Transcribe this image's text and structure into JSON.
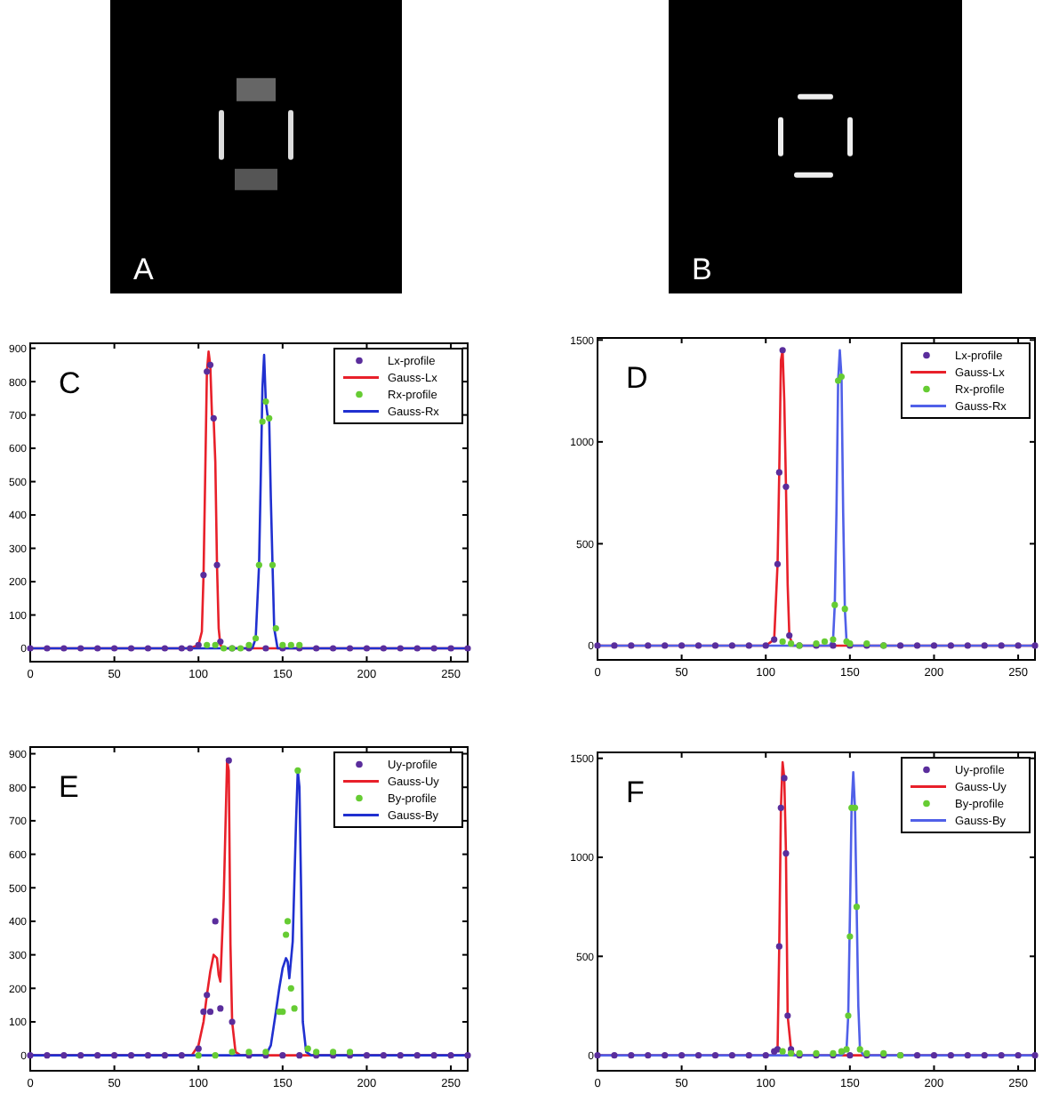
{
  "chart_data": [
    {
      "type": "other",
      "annotations": [
        "A"
      ]
    },
    {
      "type": "other",
      "annotations": [
        "B"
      ]
    },
    {
      "type": "line",
      "title": "C",
      "xlim": [
        0,
        260
      ],
      "xticks": [
        0,
        50,
        100,
        150,
        200,
        250
      ],
      "ylim": [
        -40,
        915
      ],
      "yticks": [
        0,
        100,
        200,
        300,
        400,
        500,
        600,
        700,
        800,
        900
      ],
      "legend": "top right",
      "series": [
        {
          "name": "Lx-profile",
          "type": "scatter",
          "marker": "circle",
          "color": "#5a2d9c",
          "x": [
            0,
            10,
            20,
            30,
            40,
            50,
            60,
            70,
            80,
            90,
            95,
            100,
            103,
            105,
            107,
            109,
            111,
            113,
            120,
            130,
            140,
            150,
            160,
            170,
            180,
            190,
            200,
            210,
            220,
            230,
            240,
            250,
            260
          ],
          "values": [
            0,
            0,
            0,
            0,
            0,
            0,
            0,
            0,
            0,
            0,
            0,
            10,
            220,
            830,
            850,
            690,
            250,
            20,
            0,
            0,
            0,
            0,
            0,
            0,
            0,
            0,
            0,
            0,
            0,
            0,
            0,
            0,
            0
          ]
        },
        {
          "name": "Gauss-Lx",
          "type": "line",
          "marker": "none",
          "color": "#e8202a",
          "x": [
            0,
            95,
            100,
            102,
            103,
            104,
            105,
            106,
            107,
            108,
            109,
            110,
            111,
            112,
            113,
            115,
            260
          ],
          "values": [
            0,
            0,
            10,
            50,
            220,
            520,
            830,
            890,
            850,
            700,
            690,
            560,
            250,
            60,
            10,
            0,
            0
          ]
        },
        {
          "name": "Rx-profile",
          "type": "scatter",
          "marker": "circle",
          "color": "#66cc33",
          "x": [
            105,
            110,
            115,
            120,
            125,
            130,
            134,
            136,
            138,
            140,
            142,
            144,
            146,
            150,
            155,
            160
          ],
          "values": [
            10,
            10,
            0,
            0,
            0,
            10,
            30,
            250,
            680,
            740,
            690,
            250,
            60,
            10,
            10,
            10
          ]
        },
        {
          "name": "Gauss-Rx",
          "type": "line",
          "marker": "none",
          "color": "#2030d0",
          "x": [
            0,
            132,
            134,
            136,
            137,
            138,
            139,
            140,
            141,
            142,
            143,
            144,
            145,
            147,
            260
          ],
          "values": [
            0,
            0,
            30,
            250,
            510,
            780,
            880,
            740,
            700,
            690,
            450,
            250,
            60,
            0,
            0
          ]
        }
      ]
    },
    {
      "type": "line",
      "title": "D",
      "xlim": [
        0,
        260
      ],
      "xticks": [
        0,
        50,
        100,
        150,
        200,
        250
      ],
      "ylim": [
        -70,
        1510
      ],
      "yticks": [
        0,
        500,
        1000,
        1500
      ],
      "legend": "top right",
      "series": [
        {
          "name": "Lx-profile",
          "type": "scatter",
          "marker": "circle",
          "color": "#5a2d9c",
          "x": [
            0,
            10,
            20,
            30,
            40,
            50,
            60,
            70,
            80,
            90,
            100,
            105,
            107,
            108,
            110,
            112,
            114,
            120,
            130,
            140,
            150,
            160,
            170,
            180,
            190,
            200,
            210,
            220,
            230,
            240,
            250,
            260
          ],
          "values": [
            0,
            0,
            0,
            0,
            0,
            0,
            0,
            0,
            0,
            0,
            0,
            30,
            400,
            850,
            1450,
            780,
            50,
            0,
            0,
            0,
            0,
            0,
            0,
            0,
            0,
            0,
            0,
            0,
            0,
            0,
            0,
            0
          ]
        },
        {
          "name": "Gauss-Lx",
          "type": "line",
          "marker": "none",
          "color": "#e8202a",
          "x": [
            0,
            100,
            105,
            107,
            108,
            109,
            110,
            111,
            112,
            113,
            114,
            116,
            260
          ],
          "values": [
            0,
            0,
            30,
            400,
            850,
            1400,
            1450,
            1200,
            780,
            300,
            50,
            0,
            0
          ]
        },
        {
          "name": "Rx-profile",
          "type": "scatter",
          "marker": "circle",
          "color": "#66cc33",
          "x": [
            110,
            115,
            120,
            130,
            135,
            140,
            141,
            143,
            145,
            147,
            148,
            150,
            160,
            170
          ],
          "values": [
            20,
            10,
            0,
            10,
            20,
            30,
            200,
            1300,
            1320,
            180,
            20,
            10,
            10,
            0
          ]
        },
        {
          "name": "Gauss-Rx",
          "type": "line",
          "marker": "none",
          "color": "#5060e8",
          "x": [
            0,
            138,
            140,
            141,
            142,
            143,
            144,
            145,
            146,
            147,
            148,
            150,
            260
          ],
          "values": [
            0,
            0,
            30,
            200,
            650,
            1300,
            1450,
            1320,
            650,
            180,
            20,
            0,
            0
          ]
        }
      ]
    },
    {
      "type": "line",
      "title": "E",
      "xlim": [
        0,
        260
      ],
      "xticks": [
        0,
        50,
        100,
        150,
        200,
        250
      ],
      "ylim": [
        -46,
        920
      ],
      "yticks": [
        0,
        100,
        200,
        300,
        400,
        500,
        600,
        700,
        800,
        900
      ],
      "legend": "top right",
      "series": [
        {
          "name": "Uy-profile",
          "type": "scatter",
          "marker": "circle",
          "color": "#5a2d9c",
          "x": [
            0,
            10,
            20,
            30,
            40,
            50,
            60,
            70,
            80,
            90,
            100,
            103,
            105,
            107,
            110,
            113,
            118,
            120,
            130,
            140,
            150,
            160,
            170,
            180,
            190,
            200,
            210,
            220,
            230,
            240,
            250,
            260
          ],
          "values": [
            0,
            0,
            0,
            0,
            0,
            0,
            0,
            0,
            0,
            0,
            20,
            130,
            180,
            130,
            400,
            140,
            880,
            100,
            0,
            0,
            0,
            0,
            0,
            0,
            0,
            0,
            0,
            0,
            0,
            0,
            0,
            0
          ]
        },
        {
          "name": "Gauss-Uy",
          "type": "line",
          "marker": "none",
          "color": "#e8202a",
          "x": [
            0,
            96,
            100,
            103,
            105,
            107,
            109,
            111,
            112,
            113,
            115,
            117,
            118,
            119,
            120,
            122,
            125,
            260
          ],
          "values": [
            0,
            0,
            30,
            100,
            180,
            250,
            300,
            290,
            240,
            220,
            470,
            880,
            850,
            330,
            100,
            10,
            0,
            0
          ]
        },
        {
          "name": "By-profile",
          "type": "scatter",
          "marker": "circle",
          "color": "#66cc33",
          "x": [
            100,
            110,
            120,
            130,
            140,
            148,
            150,
            152,
            153,
            155,
            157,
            159,
            165,
            170,
            180,
            190
          ],
          "values": [
            0,
            0,
            10,
            10,
            10,
            130,
            130,
            360,
            400,
            200,
            140,
            850,
            20,
            10,
            10,
            10
          ]
        },
        {
          "name": "Gauss-By",
          "type": "line",
          "marker": "none",
          "color": "#2030d0",
          "x": [
            0,
            140,
            143,
            146,
            148,
            150,
            152,
            153,
            154,
            156,
            158,
            159,
            160,
            161,
            162,
            164,
            167,
            260
          ],
          "values": [
            0,
            0,
            30,
            130,
            200,
            260,
            290,
            280,
            230,
            340,
            700,
            850,
            800,
            490,
            100,
            10,
            0,
            0
          ]
        }
      ]
    },
    {
      "type": "line",
      "title": "F",
      "xlim": [
        0,
        260
      ],
      "xticks": [
        0,
        50,
        100,
        150,
        200,
        250
      ],
      "ylim": [
        -78,
        1530
      ],
      "yticks": [
        0,
        500,
        1000,
        1500
      ],
      "legend": "top right",
      "series": [
        {
          "name": "Uy-profile",
          "type": "scatter",
          "marker": "circle",
          "color": "#5a2d9c",
          "x": [
            0,
            10,
            20,
            30,
            40,
            50,
            60,
            70,
            80,
            90,
            100,
            105,
            107,
            108,
            109,
            111,
            112,
            113,
            115,
            120,
            130,
            140,
            150,
            160,
            170,
            180,
            190,
            200,
            210,
            220,
            230,
            240,
            250,
            260
          ],
          "values": [
            0,
            0,
            0,
            0,
            0,
            0,
            0,
            0,
            0,
            0,
            0,
            20,
            30,
            550,
            1250,
            1400,
            1020,
            200,
            30,
            0,
            0,
            0,
            0,
            0,
            0,
            0,
            0,
            0,
            0,
            0,
            0,
            0,
            0,
            0
          ]
        },
        {
          "name": "Gauss-Uy",
          "type": "line",
          "marker": "none",
          "color": "#e8202a",
          "x": [
            0,
            105,
            107,
            108,
            109,
            110,
            111,
            112,
            113,
            115,
            117,
            260
          ],
          "values": [
            0,
            0,
            30,
            550,
            1250,
            1480,
            1400,
            1020,
            200,
            30,
            0,
            0
          ]
        },
        {
          "name": "By-profile",
          "type": "scatter",
          "marker": "circle",
          "color": "#66cc33",
          "x": [
            110,
            115,
            120,
            130,
            140,
            145,
            148,
            149,
            150,
            151,
            153,
            154,
            156,
            160,
            170,
            180
          ],
          "values": [
            20,
            10,
            10,
            10,
            10,
            20,
            30,
            200,
            600,
            1250,
            1250,
            750,
            30,
            10,
            10,
            0
          ]
        },
        {
          "name": "Gauss-By",
          "type": "line",
          "marker": "none",
          "color": "#5060e8",
          "x": [
            0,
            145,
            148,
            149,
            150,
            151,
            152,
            153,
            154,
            155,
            156,
            158,
            260
          ],
          "values": [
            0,
            0,
            30,
            200,
            700,
            1250,
            1430,
            1250,
            750,
            250,
            30,
            0,
            0
          ]
        }
      ]
    }
  ]
}
